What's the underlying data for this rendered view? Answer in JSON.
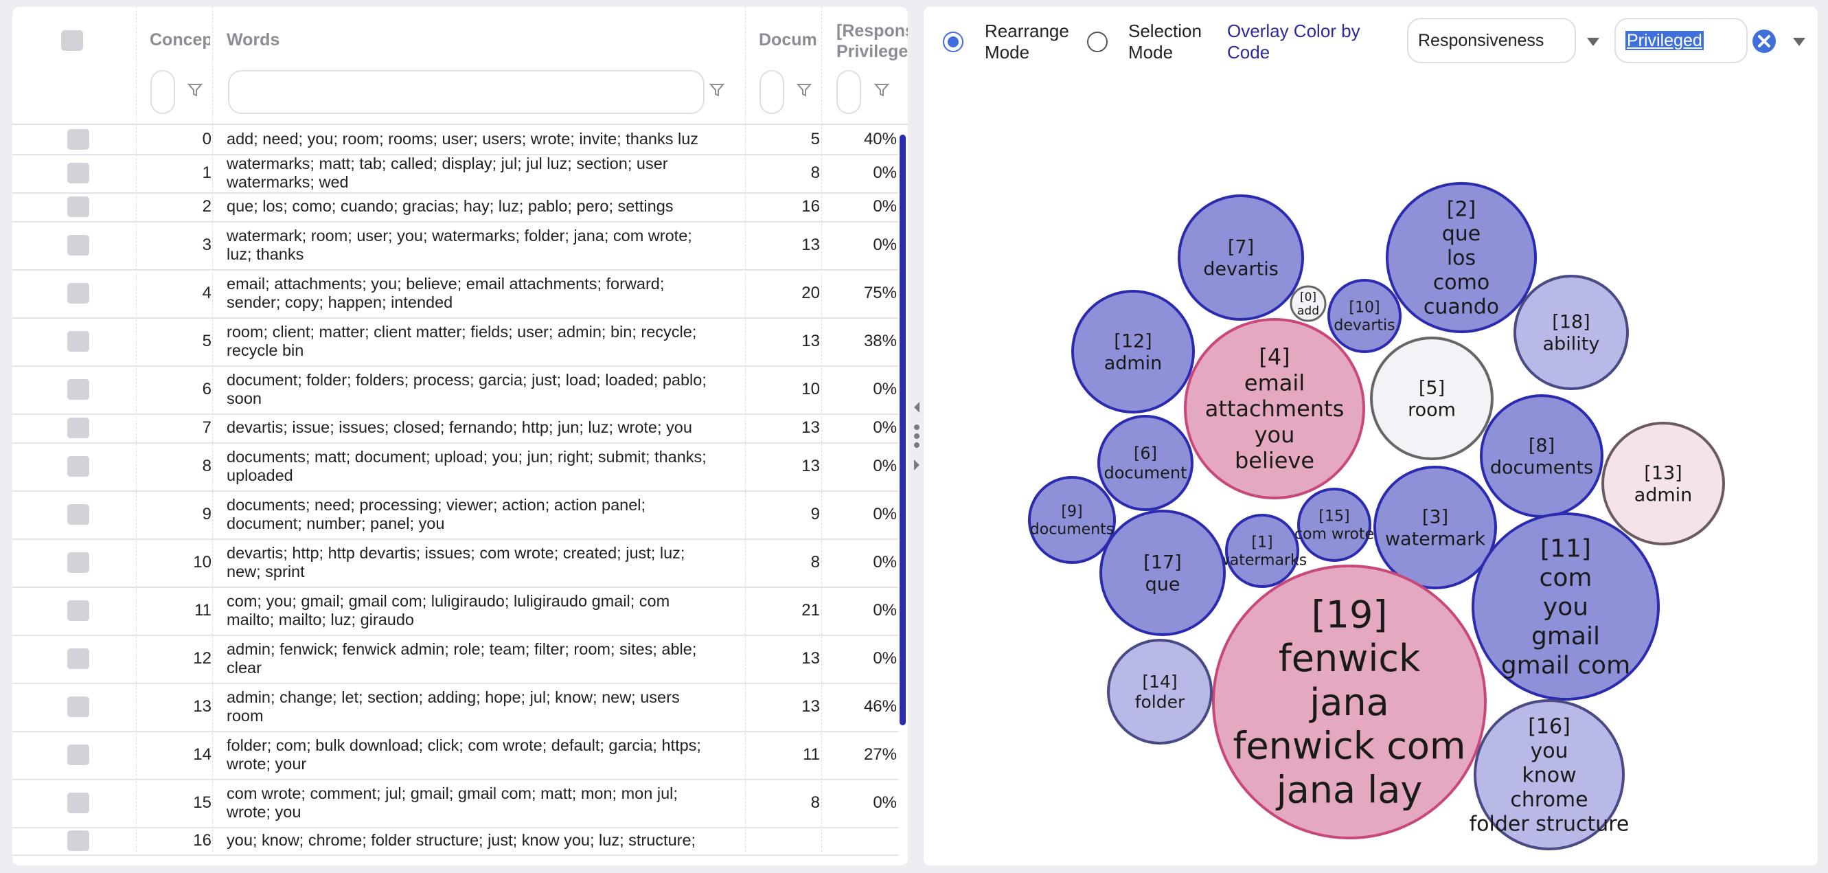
{
  "table": {
    "headers": {
      "concept": "Concept",
      "words": "Words",
      "documents": "Documents",
      "responsiveness": "[Responsiveness]",
      "privileged": "Privileged"
    },
    "rows": [
      {
        "id": "0",
        "words_l1": "add; need; you; room; rooms; user; users; wrote; invite; thanks luz",
        "words_l2": "",
        "docs": "5",
        "pct": "40%"
      },
      {
        "id": "1",
        "words_l1": "watermarks; matt; tab; called; display; jul; jul luz; section; user",
        "words_l2": "watermarks; wed",
        "docs": "8",
        "pct": "0%"
      },
      {
        "id": "2",
        "words_l1": "que; los; como; cuando; gracias; hay; luz; pablo; pero; settings",
        "words_l2": "",
        "docs": "16",
        "pct": "0%"
      },
      {
        "id": "3",
        "words_l1": "watermark; room; user; you; watermarks; folder; jana; com wrote;",
        "words_l2": "luz; thanks",
        "docs": "13",
        "pct": "0%"
      },
      {
        "id": "4",
        "words_l1": "email; attachments; you; believe; email attachments; forward;",
        "words_l2": "sender; copy; happen; intended",
        "docs": "20",
        "pct": "75%"
      },
      {
        "id": "5",
        "words_l1": "room; client; matter; client matter; fields; user; admin; bin; recycle;",
        "words_l2": "recycle bin",
        "docs": "13",
        "pct": "38%"
      },
      {
        "id": "6",
        "words_l1": "document; folder; folders; process; garcia; just; load; loaded; pablo;",
        "words_l2": "soon",
        "docs": "10",
        "pct": "0%"
      },
      {
        "id": "7",
        "words_l1": "devartis; issue; issues; closed; fernando; http; jun; luz; wrote; you",
        "words_l2": "",
        "docs": "13",
        "pct": "0%"
      },
      {
        "id": "8",
        "words_l1": "documents; matt; document; upload; you; jun; right; submit; thanks;",
        "words_l2": "uploaded",
        "docs": "13",
        "pct": "0%"
      },
      {
        "id": "9",
        "words_l1": "documents; need; processing; viewer; action; action panel;",
        "words_l2": "document; number; panel; you",
        "docs": "9",
        "pct": "0%"
      },
      {
        "id": "10",
        "words_l1": "devartis; http; http devartis; issues; com wrote; created; just; luz;",
        "words_l2": "new; sprint",
        "docs": "8",
        "pct": "0%"
      },
      {
        "id": "11",
        "words_l1": "com; you; gmail; gmail com; luligiraudo; luligiraudo gmail; com",
        "words_l2": "mailto; mailto; luz; giraudo",
        "docs": "21",
        "pct": "0%"
      },
      {
        "id": "12",
        "words_l1": "admin; fenwick; fenwick admin; role; team; filter; room; sites; able;",
        "words_l2": "clear",
        "docs": "13",
        "pct": "0%"
      },
      {
        "id": "13",
        "words_l1": "admin; change; let; section; adding; hope; jul; know; new; users",
        "words_l2": "room",
        "docs": "13",
        "pct": "46%"
      },
      {
        "id": "14",
        "words_l1": "folder; com; bulk download; click; com wrote; default; garcia; https;",
        "words_l2": "wrote; your",
        "docs": "11",
        "pct": "27%"
      },
      {
        "id": "15",
        "words_l1": "com wrote; comment; jul; gmail; gmail com; matt; mon; mon jul;",
        "words_l2": "wrote; you",
        "docs": "8",
        "pct": "0%"
      },
      {
        "id": "16",
        "words_l1": "you; know; chrome; folder structure; just; know you; luz; structure;",
        "words_l2": "",
        "docs": "",
        "pct": ""
      }
    ]
  },
  "toolbar": {
    "rearrange_line1": "Rearrange",
    "rearrange_line2": "Mode",
    "selection_line1": "Selection",
    "selection_line2": "Mode",
    "overlay_line1": "Overlay Color by",
    "overlay_line2": "Code",
    "overlay_field": "Responsiveness",
    "overlay_value": "Privileged",
    "mode_selected": "Rearrange Mode"
  },
  "colors": {
    "blue_fill": "#8f91d8",
    "blue_stroke": "#2b2bb0",
    "light_fill": "#b8b9e6",
    "pink_fill": "#e4a8c0",
    "pink_stroke": "#c8487a",
    "pale_pink_fill": "#f4e4ea",
    "white_fill": "#f3f3f7",
    "accent": "#3f6fd8"
  },
  "bubbles": [
    {
      "id": "[7]",
      "words": [
        "devartis"
      ],
      "tone": "blue"
    },
    {
      "id": "[0]",
      "words": [
        "add"
      ],
      "tone": "white"
    },
    {
      "id": "[10]",
      "words": [
        "devartis"
      ],
      "tone": "blue"
    },
    {
      "id": "[2]",
      "words": [
        "que",
        "los",
        "como",
        "cuando"
      ],
      "tone": "blue"
    },
    {
      "id": "[12]",
      "words": [
        "admin"
      ],
      "tone": "blue"
    },
    {
      "id": "[18]",
      "words": [
        "ability"
      ],
      "tone": "light"
    },
    {
      "id": "[4]",
      "words": [
        "email",
        "attachments",
        "you",
        "believe"
      ],
      "tone": "pink"
    },
    {
      "id": "[5]",
      "words": [
        "room"
      ],
      "tone": "white"
    },
    {
      "id": "[6]",
      "words": [
        "document"
      ],
      "tone": "blue"
    },
    {
      "id": "[8]",
      "words": [
        "documents"
      ],
      "tone": "blue"
    },
    {
      "id": "[13]",
      "words": [
        "admin"
      ],
      "tone": "palepink"
    },
    {
      "id": "[9]",
      "words": [
        "documents"
      ],
      "tone": "blue"
    },
    {
      "id": "[15]",
      "words": [
        "com wrote"
      ],
      "tone": "blue"
    },
    {
      "id": "[3]",
      "words": [
        "watermark"
      ],
      "tone": "blue"
    },
    {
      "id": "[1]",
      "words": [
        "watermarks"
      ],
      "tone": "blue"
    },
    {
      "id": "[17]",
      "words": [
        "que"
      ],
      "tone": "blue"
    },
    {
      "id": "[11]",
      "words": [
        "com",
        "you",
        "gmail",
        "gmail com"
      ],
      "tone": "blue"
    },
    {
      "id": "[19]",
      "words": [
        "fenwick",
        "jana",
        "fenwick com",
        "jana lay"
      ],
      "tone": "pink"
    },
    {
      "id": "[14]",
      "words": [
        "folder"
      ],
      "tone": "light"
    },
    {
      "id": "[16]",
      "words": [
        "you",
        "know",
        "chrome",
        "folder structure"
      ],
      "tone": "light"
    }
  ]
}
